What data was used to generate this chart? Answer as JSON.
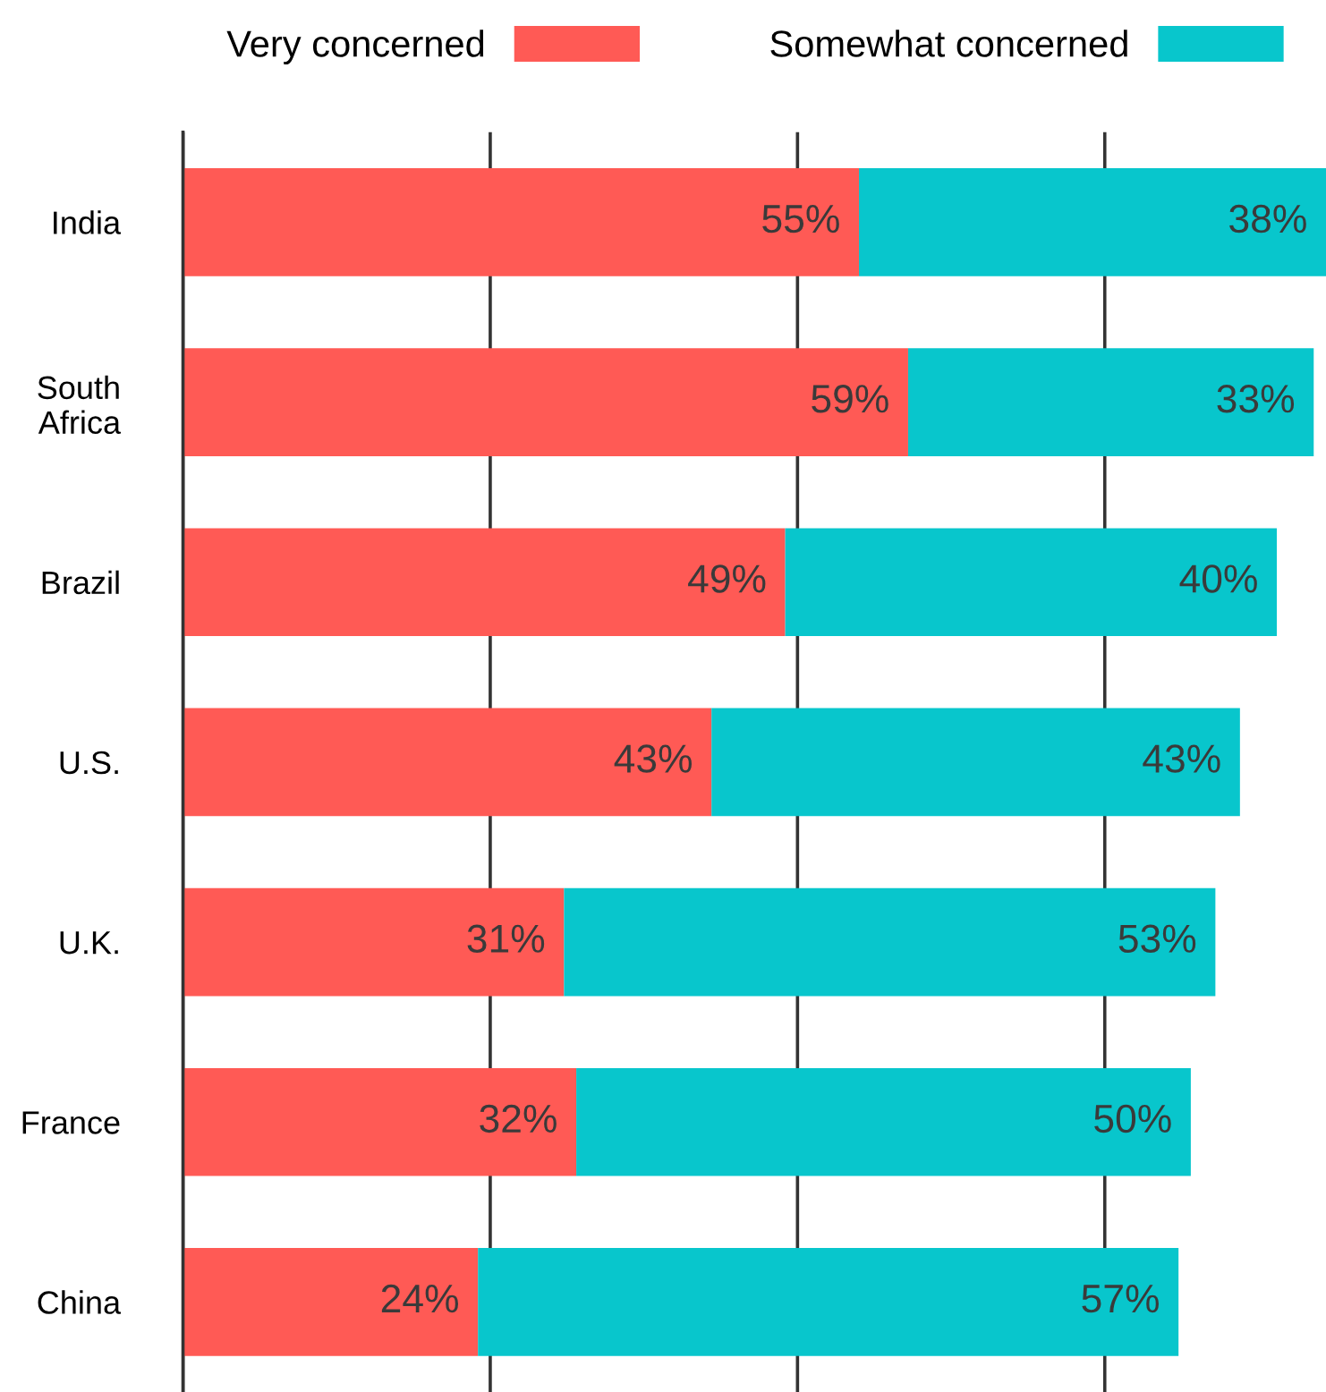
{
  "chart_data": {
    "type": "bar",
    "orientation": "horizontal",
    "stacked": true,
    "categories": [
      "India",
      "South Africa",
      "Brazil",
      "U.S.",
      "U.K.",
      "France",
      "China"
    ],
    "series": [
      {
        "name": "Very concerned",
        "color": "#ff5a55",
        "values": [
          55,
          59,
          49,
          43,
          31,
          32,
          24
        ],
        "value_labels": [
          "55%",
          "59%",
          "49%",
          "43%",
          "31%",
          "32%",
          "24%"
        ]
      },
      {
        "name": "Somewhat concerned",
        "color": "#08c6cc",
        "values": [
          38,
          33,
          40,
          43,
          53,
          50,
          57
        ],
        "value_labels": [
          "38%",
          "33%",
          "40%",
          "43%",
          "53%",
          "50%",
          "57%"
        ]
      }
    ],
    "tick_labels": "y",
    "grid": "x",
    "legend": "top"
  }
}
